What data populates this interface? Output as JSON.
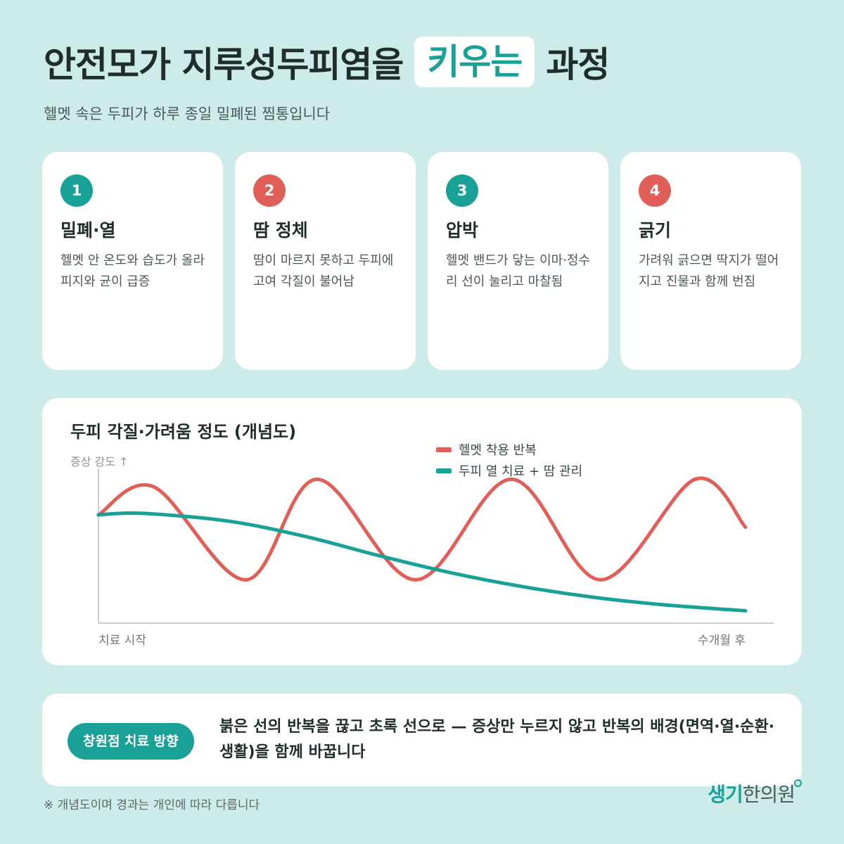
{
  "title": {
    "prefix": "안전모가 지루성두피염을",
    "highlight": "키우는",
    "suffix": "과정"
  },
  "subtitle": "헬멧 속은 두피가 하루 종일 밀폐된 찜통입니다",
  "colors": {
    "accent_teal": "#1aa197",
    "accent_red": "#e05f58",
    "background": "#cdebe8"
  },
  "steps": [
    {
      "number": "1",
      "title": "밀폐·열",
      "description": "헬멧 안 온도와 습도가 올라 피지와 균이 급증",
      "color": "#1aa197"
    },
    {
      "number": "2",
      "title": "땀 정체",
      "description": "땀이 마르지 못하고 두피에 고여 각질이 불어남",
      "color": "#e05f58"
    },
    {
      "number": "3",
      "title": "압박",
      "description": "헬멧 밴드가 닿는 이마·정수리 선이 눌리고 마찰됨",
      "color": "#1aa197"
    },
    {
      "number": "4",
      "title": "긁기",
      "description": "가려워 긁으면 딱지가 떨어지고 진물과 함께 번짐",
      "color": "#e05f58"
    }
  ],
  "chart_data": {
    "type": "line",
    "title": "두피 각질·가려움 정도 (개념도)",
    "ylabel": "증상 강도 ↑",
    "x_start_label": "치료 시작",
    "x_end_label": "수개월 후",
    "ylim": [
      0,
      1
    ],
    "series": [
      {
        "name": "헬멧 착용 반복",
        "color": "#e05f58",
        "x": [
          0.0,
          0.086,
          0.228,
          0.338,
          0.49,
          0.638,
          0.776,
          0.922,
          1.0
        ],
        "values": [
          0.7,
          0.88,
          0.28,
          0.93,
          0.28,
          0.93,
          0.28,
          0.93,
          0.62
        ]
      },
      {
        "name": "두피 열 치료 + 땀 관리",
        "color": "#1aa197",
        "x": [
          0.0,
          0.065,
          0.2,
          0.32,
          0.43,
          0.54,
          0.65,
          0.76,
          0.87,
          1.0
        ],
        "values": [
          0.7,
          0.71,
          0.66,
          0.56,
          0.44,
          0.33,
          0.24,
          0.17,
          0.12,
          0.08
        ]
      }
    ]
  },
  "direction": {
    "badge": "창원점 치료 방향",
    "text": "붉은 선의 반복을 끊고 초록 선으로 — 증상만 누르지 않고 반복의 배경(면역·열·순환·생활)을 함께 바꿉니다"
  },
  "footnote": "※ 개념도이며 경과는 개인에 따라 다릅니다",
  "logo": {
    "part1": "생기",
    "part2": "한의원"
  }
}
